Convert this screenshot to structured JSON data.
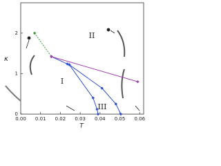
{
  "chart_data": {
    "type": "line",
    "xlabel": "T",
    "ylabel": "κ",
    "xlim": [
      0,
      0.062
    ],
    "ylim": [
      0,
      2.75
    ],
    "xticks": [
      {
        "value": 0,
        "label": "0.00"
      },
      {
        "value": 0.01,
        "label": "0.01"
      },
      {
        "value": 0.02,
        "label": "0.02"
      },
      {
        "value": 0.03,
        "label": "0.03"
      },
      {
        "value": 0.04,
        "label": "0.04"
      },
      {
        "value": 0.05,
        "label": "0.05"
      },
      {
        "value": 0.06,
        "label": "0.06"
      }
    ],
    "yticks": [
      0,
      1,
      2
    ],
    "series": [
      {
        "color": "#3a9a3a",
        "dashed": true,
        "x": [
          0.007,
          0.0155
        ],
        "values": [
          2.0,
          1.42
        ]
      },
      {
        "color": "#3050d0",
        "dashed": false,
        "x": [
          0.0155,
          0.0235,
          0.0245,
          0.0365,
          0.0385,
          0.039
        ],
        "values": [
          1.42,
          1.24,
          1.22,
          0.4,
          0.12,
          0
        ]
      },
      {
        "color": "#3050d0",
        "dashed": false,
        "x": [
          0.0245,
          0.041,
          0.048,
          0.0505
        ],
        "values": [
          1.22,
          0.64,
          0.25,
          0
        ]
      },
      {
        "color": "#a040b0",
        "dashed": false,
        "x": [
          0.0155,
          0.059
        ],
        "values": [
          1.42,
          0.8
        ]
      }
    ],
    "region_labels": [
      "I",
      "II",
      "III"
    ]
  }
}
